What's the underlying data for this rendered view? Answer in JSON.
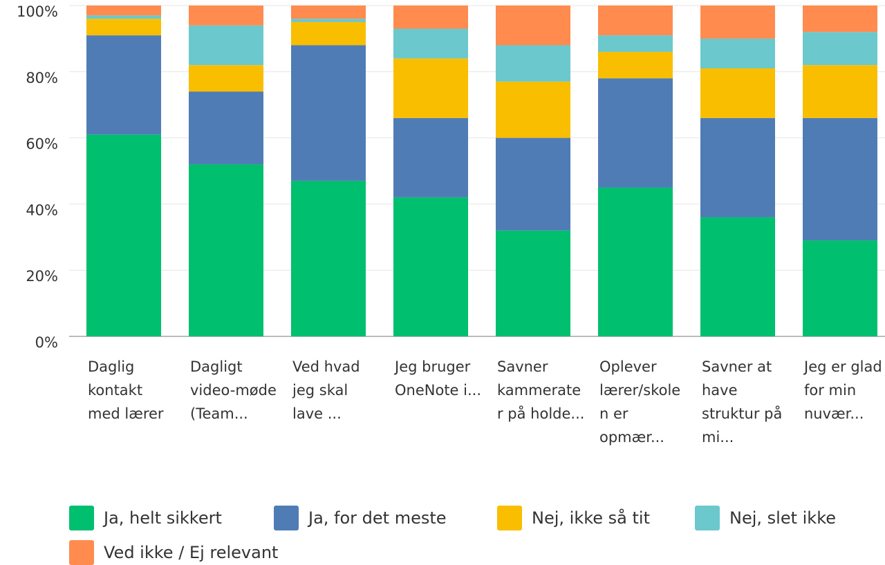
{
  "chart_data": {
    "type": "stacked_bar",
    "categories": [
      "Daglig kontakt med lærer",
      "Dagligt video-møde (Team...",
      "Ved hvad jeg skal lave ...",
      "Jeg bruger OneNote i...",
      "Savner kammerater på holde...",
      "Oplever lærer/skolen er opmær...",
      "Savner at have struktur på mi...",
      "Jeg er glad for min nuvær..."
    ],
    "series": [
      {
        "name": "Ja, helt sikkert",
        "color": "#00bf6f",
        "values": [
          61,
          52,
          47,
          42,
          32,
          45,
          36,
          29
        ]
      },
      {
        "name": "Ja, for det meste",
        "color": "#507cb6",
        "values": [
          30,
          22,
          41,
          24,
          28,
          33,
          30,
          37
        ]
      },
      {
        "name": "Nej, ikke så tit",
        "color": "#f9be00",
        "values": [
          5,
          8,
          7,
          18,
          17,
          8,
          15,
          16
        ]
      },
      {
        "name": "Nej, slet ikke",
        "color": "#6bc8cd",
        "values": [
          1,
          12,
          1,
          9,
          11,
          5,
          9,
          10
        ]
      },
      {
        "name": "Ved ikke / Ej relevant",
        "color": "#ff8b4f",
        "values": [
          3,
          6,
          4,
          7,
          12,
          9,
          10,
          8
        ]
      }
    ],
    "ylim": [
      0,
      100
    ],
    "yticks": [
      {
        "value": 0,
        "label": "0%"
      },
      {
        "value": 20,
        "label": "20%"
      },
      {
        "value": 40,
        "label": "40%"
      },
      {
        "value": 60,
        "label": "60%"
      },
      {
        "value": 80,
        "label": "80%"
      },
      {
        "value": 100,
        "label": "100%"
      }
    ],
    "grid": true
  }
}
